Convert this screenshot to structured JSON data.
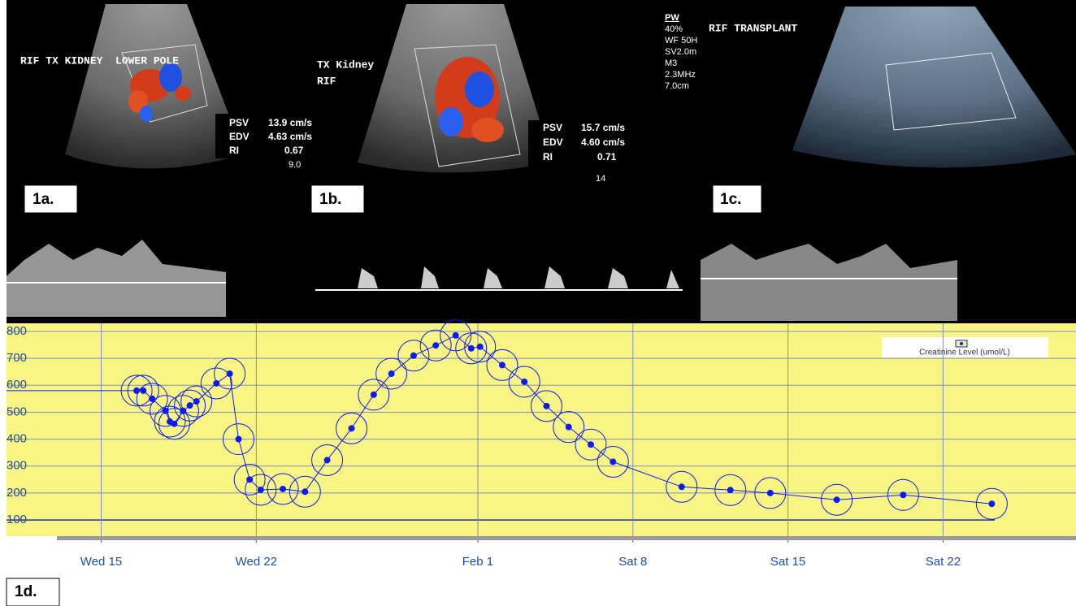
{
  "panels": [
    {
      "label": "1a.",
      "title": "RIF TX KIDNEY  LOWER POLE",
      "measurements": [
        [
          "PSV",
          "13.9 cm/s"
        ],
        [
          "EDV",
          "4.63 cm/s"
        ],
        [
          "RI",
          "0.67"
        ]
      ],
      "depth": "9.0"
    },
    {
      "label": "1b.",
      "title": [
        "TX Kidney",
        "RIF"
      ],
      "measurements": [
        [
          "PSV",
          "15.7 cm/s"
        ],
        [
          "EDV",
          "4.60 cm/s"
        ],
        [
          "RI",
          "0.71"
        ]
      ],
      "depth": "14"
    },
    {
      "label": "1c.",
      "title": "RIF TRANSPLANT",
      "settings": [
        "PW",
        "40%",
        "WF 50H",
        "SV2.0m",
        "M3",
        "2.3MHz",
        "7.0cm"
      ]
    }
  ],
  "chart_label": "1d.",
  "chart_data": {
    "type": "line",
    "x": [
      16.6,
      16.9,
      17.3,
      17.9,
      18.1,
      18.3,
      18.7,
      19.0,
      19.3,
      20.2,
      20.8,
      21.2,
      21.7,
      22.2,
      23.2,
      24.2,
      25.2,
      26.3,
      27.3,
      28.1,
      29.1,
      30.1,
      31.0,
      31.7,
      32.1,
      33.1,
      34.1,
      35.1,
      36.1,
      37.1,
      38.1,
      41.2,
      43.4,
      45.2,
      48.2,
      51.2,
      55.2
    ],
    "series": [
      {
        "name": "Creatinine Level (umol/L)",
        "color": "#0a1cf0",
        "values": [
          580,
          580,
          550,
          505,
          465,
          457,
          505,
          525,
          540,
          607,
          643,
          400,
          250,
          212,
          215,
          205,
          322,
          440,
          565,
          643,
          710,
          748,
          785,
          737,
          743,
          675,
          613,
          523,
          445,
          380,
          316,
          223,
          211,
          200,
          175,
          193,
          160
        ]
      }
    ],
    "xlim": [
      13,
      59
    ],
    "xticks": [
      {
        "value": 15,
        "label": "Wed 15"
      },
      {
        "value": 22,
        "label": "Wed 22"
      },
      {
        "value": 32,
        "label": "Feb 1"
      },
      {
        "value": 39,
        "label": "Sat 8"
      },
      {
        "value": 46,
        "label": "Sat 15"
      },
      {
        "value": 53,
        "label": "Sat 22"
      }
    ],
    "ylim": [
      40,
      830
    ],
    "yticks": [
      100,
      200,
      300,
      400,
      500,
      600,
      700,
      800
    ],
    "grid": true,
    "legend": "top-right"
  }
}
